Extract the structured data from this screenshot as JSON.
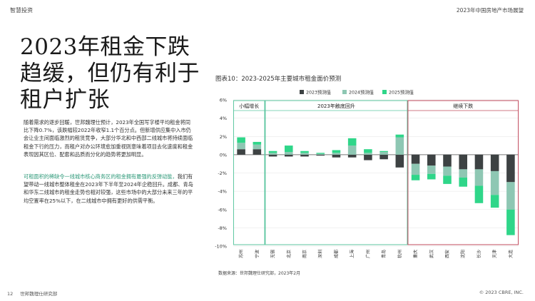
{
  "header": {
    "left": "智慧投资",
    "right": "2023年中国房地产市场展望"
  },
  "headline": [
    "2023年租金下跌",
    "趋缓，但仍有利于",
    "租户扩张"
  ],
  "body": {
    "p1": "随着需求的逐步回暖，世邦魏理仕预计，2023年全国写字楼平均租金将同比下降0.7%，该跌幅较2022年收窄1.1个百分点。但新增供应集中入市仍会让业主间面临激烈的租赁竞争，大部分华北和中西部二线城市将持续面临租金下行的压力，而租户对办公环境愈加重视则意味着项目去化速度和租金表现因其区位、配套和品质而分化的趋势将更加明显。",
    "p2_highlight": "可租面积的稀缺令一线城市核心商务区的租金拥有最强的反弹动能，",
    "p2_rest": "我们有望带动一线城市整体租金在2023年下半年至2024年企稳回升。成都、青岛和华东二线城市的租金走势也相对较强，这些市场中的大部分未来三年的平均空置率在25%以下，在二线城市中拥有更好的供需平衡。"
  },
  "chart_title": "图表10：2023-2025年主要城市租金面价预测",
  "source": "数据来源：世邦魏理仕研究部，2023年2月",
  "footer": {
    "page": "12",
    "left": "世邦魏理仕研究部",
    "right": "© 2023 CBRE, INC."
  },
  "colors": {
    "s2023": "#3d4243",
    "s2024": "#8ec7b3",
    "s2025": "#2fd689",
    "box_green": "#5cc6a0",
    "box_red": "#c24b5e",
    "highlight": "#2f9a7a"
  },
  "chart_data": {
    "type": "bar",
    "stacked": true,
    "categories": [
      "苏州",
      "宁波",
      "无锡",
      "北京",
      "南京",
      "深圳",
      "成都",
      "上海",
      "广州",
      "青岛",
      "杭州",
      "重庆",
      "武汉",
      "西安",
      "沈阳",
      "长沙",
      "天津",
      "大连"
    ],
    "series": [
      {
        "name": "2023预测值",
        "values": [
          0.6,
          0.6,
          -0.2,
          -0.2,
          -0.2,
          -0.1,
          -0.3,
          -0.3,
          -0.6,
          -0.5,
          -1.4,
          -1.0,
          -1.2,
          -1.3,
          -1.6,
          -1.6,
          -1.8,
          -3.0
        ]
      },
      {
        "name": "2024预测值",
        "values": [
          0.7,
          0.5,
          0.2,
          0.3,
          0.2,
          0.1,
          0.2,
          1.0,
          0.2,
          0.3,
          1.9,
          -1.2,
          -0.9,
          -1.0,
          -0.9,
          -1.8,
          -2.6,
          -3.0
        ]
      },
      {
        "name": "2025预测值",
        "values": [
          0.6,
          0.3,
          0.2,
          0.7,
          0.2,
          0.1,
          0.3,
          0.8,
          0.4,
          0.1,
          0.3,
          -0.6,
          -0.6,
          -0.9,
          -1.0,
          -1.9,
          -1.4,
          -2.8
        ]
      }
    ],
    "groups": [
      {
        "label": "小幅增长",
        "start": 0,
        "end": 1,
        "color": "#5cc6a0"
      },
      {
        "label": "2023年触底回升",
        "start": 2,
        "end": 10,
        "color": "#5cc6a0"
      },
      {
        "label": "继续下跌",
        "start": 11,
        "end": 17,
        "color": "#c24b5e"
      }
    ],
    "yticks": [
      "6%",
      "4%",
      "2%",
      "0%",
      "-2%",
      "-4%",
      "-6%",
      "-8%",
      "-10%"
    ],
    "ylim": [
      -10,
      6
    ],
    "legend_position": "top",
    "grid": true
  }
}
